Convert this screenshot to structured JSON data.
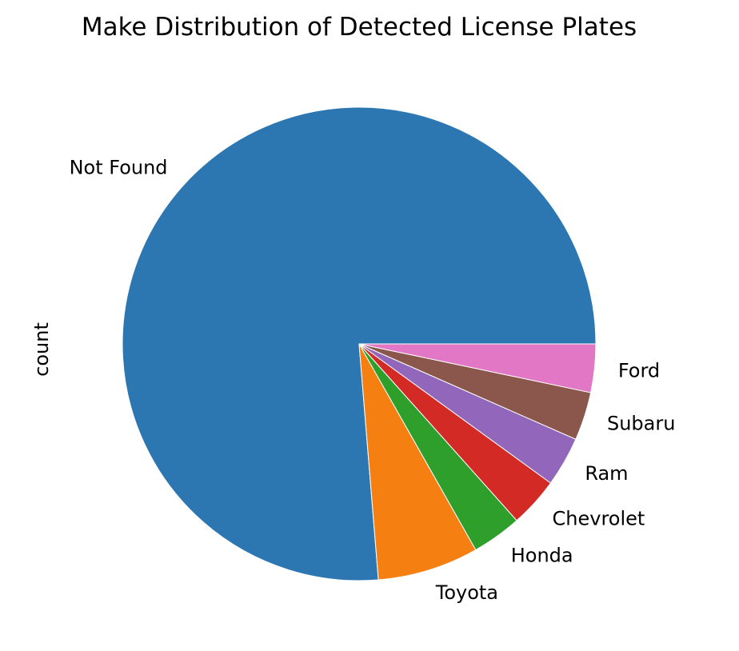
{
  "chart_data": {
    "type": "pie",
    "title": "Make Distribution of Detected License Plates",
    "ylabel": "count",
    "start_angle_deg": 0,
    "direction": "counterclockwise",
    "legend": "none",
    "slices": [
      {
        "label": "Not Found",
        "value": 76.3,
        "color": "#2c77b2"
      },
      {
        "label": "Toyota",
        "value": 6.9,
        "color": "#f57f11"
      },
      {
        "label": "Honda",
        "value": 3.4,
        "color": "#2f9f2c"
      },
      {
        "label": "Chevrolet",
        "value": 3.4,
        "color": "#d42a26"
      },
      {
        "label": "Ram",
        "value": 3.4,
        "color": "#9267bb"
      },
      {
        "label": "Subaru",
        "value": 3.3,
        "color": "#8b564c"
      },
      {
        "label": "Ford",
        "value": 3.3,
        "color": "#e177c5"
      }
    ]
  }
}
